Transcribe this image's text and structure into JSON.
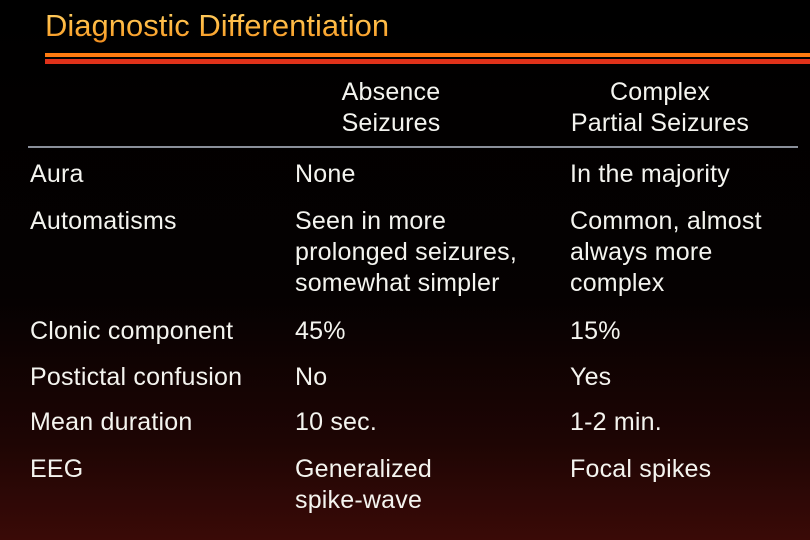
{
  "header": {
    "title": "Diagnostic Differentiation"
  },
  "table": {
    "columns": [
      [
        "Absence",
        "Seizures"
      ],
      [
        "Complex",
        "Partial Seizures"
      ]
    ],
    "rows": [
      [
        [
          "Aura"
        ],
        [
          "None"
        ],
        [
          "In the majority"
        ]
      ],
      [
        [
          "Automatisms"
        ],
        [
          "Seen in more",
          "prolonged seizures,",
          "somewhat simpler"
        ],
        [
          "Common, almost",
          "always more",
          "complex"
        ]
      ],
      [
        [
          "Clonic component"
        ],
        [
          "45%"
        ],
        [
          "15%"
        ]
      ],
      [
        [
          "Postictal confusion"
        ],
        [
          "No"
        ],
        [
          "Yes"
        ]
      ],
      [
        [
          "Mean duration"
        ],
        [
          "10 sec."
        ],
        [
          "1-2 min."
        ]
      ],
      [
        [
          "EEG"
        ],
        [
          "Generalized",
          "spike-wave"
        ],
        [
          "Focal spikes"
        ]
      ]
    ]
  }
}
